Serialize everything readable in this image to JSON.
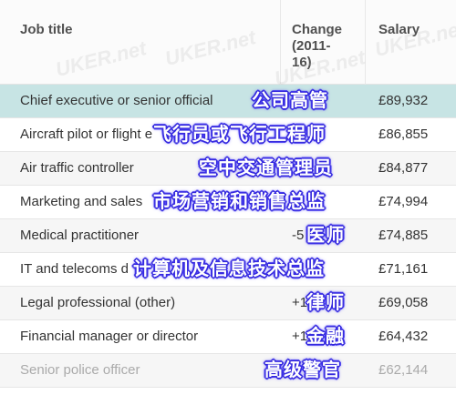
{
  "header": {
    "job_title": "Job title",
    "change_line1": "Change",
    "change_line2": "(2011-",
    "change_line3": "16)",
    "salary": "Salary"
  },
  "rows": [
    {
      "job": "Chief executive or senior official",
      "change": "",
      "salary": "£89,932",
      "overlay": "公司高管"
    },
    {
      "job": "Aircraft pilot or flight e",
      "change": "",
      "salary": "£86,855",
      "overlay": "飞行员或飞行工程师"
    },
    {
      "job": "Air traffic controller",
      "change": "",
      "salary": "£84,877",
      "overlay": "空中交通管理员"
    },
    {
      "job": "Marketing and sales",
      "change": "",
      "salary": "£74,994",
      "overlay": "市场营销和销售总监"
    },
    {
      "job": "Medical practitioner",
      "change": "-5",
      "salary": "£74,885",
      "overlay": "医师"
    },
    {
      "job": "IT and telecoms d",
      "change": "",
      "salary": "£71,161",
      "overlay": "计算机及信息技术总监"
    },
    {
      "job": "Legal professional (other)",
      "change": "+1",
      "salary": "£69,058",
      "overlay": "律师"
    },
    {
      "job": "Financial manager or director",
      "change": "+1",
      "salary": "£64,432",
      "overlay": "金融"
    },
    {
      "job": "Senior police officer",
      "change": "",
      "salary": "£62,144",
      "overlay": "高级警官"
    }
  ],
  "watermarks": [
    "UKER.net",
    "UKER.net",
    "UKER.net",
    "UKER.net"
  ]
}
